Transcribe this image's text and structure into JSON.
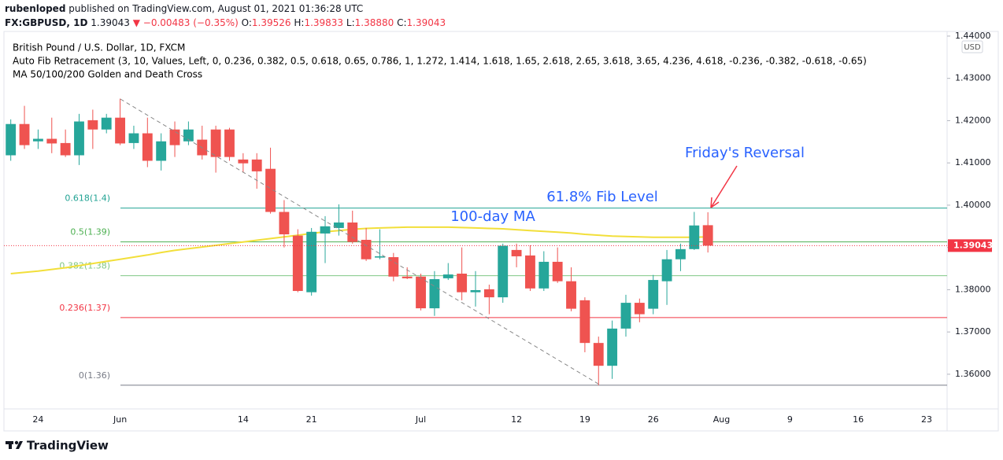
{
  "header": {
    "publisher": "rubenloped",
    "published": "published on TradingView.com, August 01, 2021 01:36:28 UTC",
    "symbol": "FX:GBPUSD, 1D",
    "price": "1.39043",
    "change": "▼ −0.00483 (−0.35%)",
    "ohlc": [
      {
        "label": "O:",
        "value": "1.39526"
      },
      {
        "label": "H:",
        "value": "1.39833"
      },
      {
        "label": "L:",
        "value": "1.38880"
      },
      {
        "label": "C:",
        "value": "1.39043"
      }
    ]
  },
  "chart_data": {
    "type": "candlestick",
    "legend_lines": [
      "British Pound / U.S. Dollar, 1D, FXCM",
      "Auto Fib Retracement (3, 10, Values, Left, 0, 0.236, 0.382, 0.5, 0.618, 0.65, 0.786, 1, 1.272, 1.414, 1.618, 1.65, 2.618, 2.65, 3.618, 3.65, 4.236, 4.618, -0.236, -0.382, -0.618, -0.65)",
      "MA 50/100/200 Golden and Death Cross"
    ],
    "categories": [
      null,
      null,
      "24",
      null,
      null,
      null,
      null,
      null,
      "Jun",
      null,
      null,
      null,
      null,
      null,
      null,
      null,
      null,
      "14",
      null,
      null,
      null,
      null,
      "21",
      null,
      null,
      null,
      null,
      null,
      null,
      null,
      "Jul",
      null,
      null,
      null,
      null,
      null,
      null,
      "12",
      null,
      null,
      null,
      null,
      "19",
      null,
      null,
      null,
      null,
      "26",
      null,
      null,
      null,
      null,
      "Aug",
      null,
      null,
      null,
      null,
      "9",
      null,
      null,
      null,
      null,
      "16",
      null,
      null,
      null,
      null,
      "23",
      null
    ],
    "open": [
      1.4118,
      1.4192,
      1.4151,
      1.4157,
      1.4147,
      1.4118,
      1.4201,
      1.4179,
      1.4207,
      1.4147,
      1.417,
      1.4105,
      1.4179,
      1.4151,
      1.4155,
      1.4179,
      1.4179,
      1.4108,
      1.4108,
      1.4086,
      1.3984,
      1.3928,
      1.3794,
      1.3933,
      1.3946,
      1.3959,
      1.3918,
      1.3876,
      1.3877,
      1.3831,
      1.3831,
      1.3756,
      1.3827,
      1.3838,
      1.3794,
      1.3801,
      1.3782,
      1.3894,
      1.3881,
      1.3803,
      1.3866,
      1.382,
      1.3775,
      1.3674,
      1.362,
      1.3708,
      1.3769,
      1.3755,
      1.382,
      1.3872,
      1.3896,
      1.39526,
      null,
      null,
      null,
      null,
      null,
      null,
      null,
      null,
      null,
      null,
      null,
      null,
      null,
      null,
      null,
      null,
      null
    ],
    "high": [
      1.4203,
      1.4235,
      1.4179,
      1.4207,
      1.4179,
      1.4216,
      1.4226,
      1.4216,
      1.4252,
      1.4188,
      1.4207,
      1.417,
      1.4198,
      1.4198,
      1.4188,
      1.4188,
      1.4183,
      1.4123,
      1.4123,
      1.4136,
      1.4012,
      1.3943,
      1.3946,
      1.3974,
      1.4002,
      1.3987,
      1.3946,
      1.3943,
      1.3887,
      1.3853,
      1.3838,
      1.3844,
      1.3863,
      1.39,
      1.3844,
      1.3812,
      1.3909,
      1.3909,
      1.3905,
      1.3891,
      1.39,
      1.3853,
      1.3782,
      1.3689,
      1.3727,
      1.3788,
      1.3779,
      1.3835,
      1.3894,
      1.3909,
      1.3984,
      1.39833,
      null,
      null,
      null,
      null,
      null,
      null,
      null,
      null,
      null,
      null,
      null,
      null,
      null,
      null,
      null,
      null,
      null
    ],
    "low": [
      1.4105,
      1.4133,
      1.4133,
      1.4123,
      1.4114,
      1.4095,
      1.4133,
      1.417,
      1.4142,
      1.4133,
      1.409,
      1.4082,
      1.4114,
      1.4142,
      1.4108,
      1.4077,
      1.4105,
      1.4077,
      1.4039,
      1.398,
      1.39,
      1.3794,
      1.3786,
      1.3863,
      1.3928,
      1.3909,
      1.3868,
      1.3872,
      1.382,
      1.3825,
      1.3751,
      1.3738,
      1.3823,
      1.3775,
      1.376,
      1.3742,
      1.3769,
      1.3853,
      1.3797,
      1.3797,
      1.3816,
      1.3749,
      1.3652,
      1.3574,
      1.3589,
      1.3689,
      1.3723,
      1.3742,
      1.3764,
      1.3844,
      1.3894,
      1.3888,
      null,
      null,
      null,
      null,
      null,
      null,
      null,
      null,
      null,
      null,
      null,
      null,
      null,
      null,
      null,
      null,
      null
    ],
    "close": [
      1.4192,
      1.4142,
      1.4157,
      1.4146,
      1.4118,
      1.4198,
      1.4179,
      1.4207,
      1.4146,
      1.417,
      1.4105,
      1.4151,
      1.4142,
      1.4179,
      1.4118,
      1.4114,
      1.4114,
      1.4099,
      1.408,
      1.3984,
      1.3931,
      1.3797,
      1.3937,
      1.395,
      1.3959,
      1.3913,
      1.3872,
      1.3879,
      1.3831,
      1.3827,
      1.3756,
      1.3825,
      1.3836,
      1.3794,
      1.3799,
      1.3782,
      1.3904,
      1.3879,
      1.3803,
      1.3866,
      1.382,
      1.3755,
      1.3674,
      1.362,
      1.3708,
      1.3769,
      1.3742,
      1.3823,
      1.3872,
      1.3896,
      1.3952,
      1.39043,
      null,
      null,
      null,
      null,
      null,
      null,
      null,
      null,
      null,
      null,
      null,
      null,
      null,
      null,
      null,
      null,
      null
    ],
    "up_color": "#26a69a",
    "down_color": "#ef5350",
    "moving_average": {
      "color": "#f2df3a",
      "values": [
        1.3838,
        1.3841,
        1.3844,
        1.3848,
        1.3852,
        1.3857,
        1.3862,
        1.3867,
        1.3872,
        1.3877,
        1.3882,
        1.3888,
        1.3893,
        1.3897,
        1.3901,
        1.3905,
        1.3909,
        1.3913,
        1.3917,
        1.3921,
        1.3925,
        1.3929,
        1.3933,
        1.3937,
        1.394,
        1.3943,
        1.3945,
        1.3946,
        1.3947,
        1.3948,
        1.3948,
        1.3948,
        1.3948,
        1.3947,
        1.3946,
        1.3945,
        1.3944,
        1.3942,
        1.394,
        1.3938,
        1.3936,
        1.3934,
        1.3931,
        1.3929,
        1.3927,
        1.3926,
        1.3925,
        1.3924,
        1.3924,
        1.3924,
        1.3924,
        1.3925,
        null,
        null,
        null,
        null,
        null,
        null,
        null,
        null,
        null,
        null,
        null,
        null,
        null,
        null,
        null,
        null,
        null
      ]
    },
    "fib_levels": [
      {
        "label": "0.618(1.4)",
        "value": 1.3993,
        "color": "#22a394"
      },
      {
        "label": "0.5(1.39)",
        "value": 1.3913,
        "color": "#4caf50"
      },
      {
        "label": "0.382(1.38)",
        "value": 1.3833,
        "color": "#81c784"
      },
      {
        "label": "0.236(1.37)",
        "value": 1.3734,
        "color": "#f23645"
      },
      {
        "label": "0(1.36)",
        "value": 1.3574,
        "color": "#787b86"
      }
    ],
    "last_price": {
      "value": 1.39043,
      "label": "1.39043",
      "color": "#f23645"
    },
    "currency": "USD",
    "annotations": [
      "Friday's Reversal",
      "61.8% Fib Level",
      "100-day MA"
    ],
    "ylim": [
      1.3518,
      1.4411
    ],
    "yticks": [
      {
        "value": 1.36,
        "label": "1.36000"
      },
      {
        "value": 1.37,
        "label": "1.37000"
      },
      {
        "value": 1.38,
        "label": "1.38000"
      },
      {
        "value": 1.39,
        "label": "1.39000"
      },
      {
        "value": 1.4,
        "label": "1.40000"
      },
      {
        "value": 1.41,
        "label": "1.41000"
      },
      {
        "value": 1.42,
        "label": "1.42000"
      },
      {
        "value": 1.43,
        "label": "1.43000"
      },
      {
        "value": 1.44,
        "label": "1.44000"
      }
    ],
    "grid": false
  },
  "footer": {
    "brand": "TradingView"
  }
}
